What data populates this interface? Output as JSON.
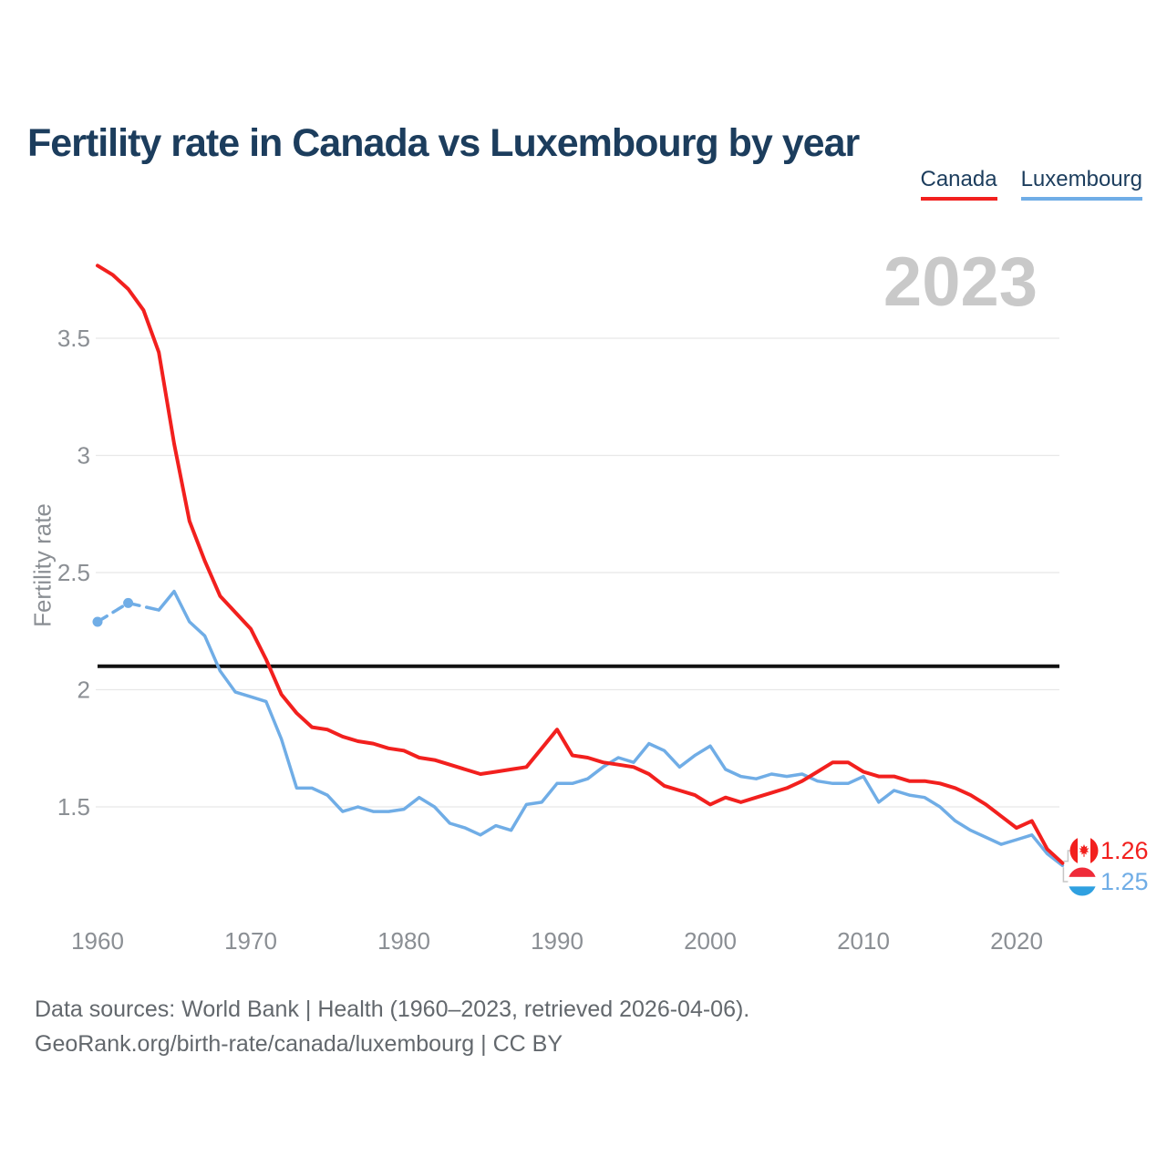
{
  "page": {
    "title": "Fertility rate in Canada vs Luxembourg by year",
    "watermark_year": "2023",
    "footer_line1": "Data sources: World Bank | Health (1960–2023, retrieved 2026-04-06).",
    "footer_line2": "GeoRank.org/birth-rate/canada/luxembourg | CC BY"
  },
  "legend": {
    "canada": "Canada",
    "luxembourg": "Luxembourg"
  },
  "colors": {
    "canada_red": "#f2201e",
    "luxembourg_blue": "#70ade6",
    "title_navy": "#1c3d5d",
    "axis_gray": "#8b8f94",
    "gridline_gray": "#e8e8e8",
    "watermark_gray": "#c9c9c9",
    "reference_line_black": "#111111",
    "footer_gray": "#63686d",
    "lux_flag_red": "#ef2b39",
    "lux_flag_blue": "#2fa0e0",
    "leader_gray": "#c6c6c6"
  },
  "chart_data": {
    "type": "line",
    "title": "Fertility rate in Canada vs Luxembourg by year",
    "ylabel": "Fertility rate",
    "xlabel": "",
    "grid": "horizontal",
    "legend_position": "top-right",
    "watermark": "2023",
    "xlim": [
      1960,
      2023
    ],
    "ylim": [
      1.1,
      3.95
    ],
    "xticks": [
      1960,
      1970,
      1980,
      1990,
      2000,
      2010,
      2020
    ],
    "yticks": [
      1.5,
      2,
      2.5,
      3,
      3.5
    ],
    "reference_line": {
      "value": 2.1
    },
    "years": [
      1960,
      1961,
      1962,
      1963,
      1964,
      1965,
      1966,
      1967,
      1968,
      1969,
      1970,
      1971,
      1972,
      1973,
      1974,
      1975,
      1976,
      1977,
      1978,
      1979,
      1980,
      1981,
      1982,
      1983,
      1984,
      1985,
      1986,
      1987,
      1988,
      1989,
      1990,
      1991,
      1992,
      1993,
      1994,
      1995,
      1996,
      1997,
      1998,
      1999,
      2000,
      2001,
      2002,
      2003,
      2004,
      2005,
      2006,
      2007,
      2008,
      2009,
      2010,
      2011,
      2012,
      2013,
      2014,
      2015,
      2016,
      2017,
      2018,
      2019,
      2020,
      2021,
      2022,
      2023
    ],
    "series": [
      {
        "name": "Canada",
        "color": "#f2201e",
        "values": [
          3.81,
          3.77,
          3.71,
          3.62,
          3.44,
          3.05,
          2.72,
          2.55,
          2.4,
          2.33,
          2.26,
          2.13,
          1.98,
          1.9,
          1.84,
          1.83,
          1.8,
          1.78,
          1.77,
          1.75,
          1.74,
          1.71,
          1.7,
          1.68,
          1.66,
          1.64,
          1.65,
          1.66,
          1.67,
          1.75,
          1.83,
          1.72,
          1.71,
          1.69,
          1.68,
          1.67,
          1.64,
          1.59,
          1.57,
          1.55,
          1.51,
          1.54,
          1.52,
          1.54,
          1.56,
          1.58,
          1.61,
          1.65,
          1.69,
          1.69,
          1.65,
          1.63,
          1.63,
          1.61,
          1.61,
          1.6,
          1.58,
          1.55,
          1.51,
          1.46,
          1.41,
          1.44,
          1.32,
          1.26
        ]
      },
      {
        "name": "Luxembourg",
        "color": "#70ade6",
        "dashed_until_year": 1964,
        "marker_years": [
          1960,
          1962
        ],
        "values": [
          2.29,
          null,
          2.37,
          null,
          2.34,
          2.42,
          2.29,
          2.23,
          2.08,
          1.99,
          1.97,
          1.95,
          1.79,
          1.58,
          1.58,
          1.55,
          1.48,
          1.5,
          1.48,
          1.48,
          1.49,
          1.54,
          1.5,
          1.43,
          1.41,
          1.38,
          1.42,
          1.4,
          1.51,
          1.52,
          1.6,
          1.6,
          1.62,
          1.67,
          1.71,
          1.69,
          1.77,
          1.74,
          1.67,
          1.72,
          1.76,
          1.66,
          1.63,
          1.62,
          1.64,
          1.63,
          1.64,
          1.61,
          1.6,
          1.6,
          1.63,
          1.52,
          1.57,
          1.55,
          1.54,
          1.5,
          1.44,
          1.4,
          1.37,
          1.34,
          1.36,
          1.38,
          1.3,
          1.25
        ]
      }
    ],
    "end_labels": [
      {
        "series": "Canada",
        "flag": "canada-flag-icon",
        "text": "1.26"
      },
      {
        "series": "Luxembourg",
        "flag": "luxembourg-flag-icon",
        "text": "1.25"
      }
    ]
  }
}
